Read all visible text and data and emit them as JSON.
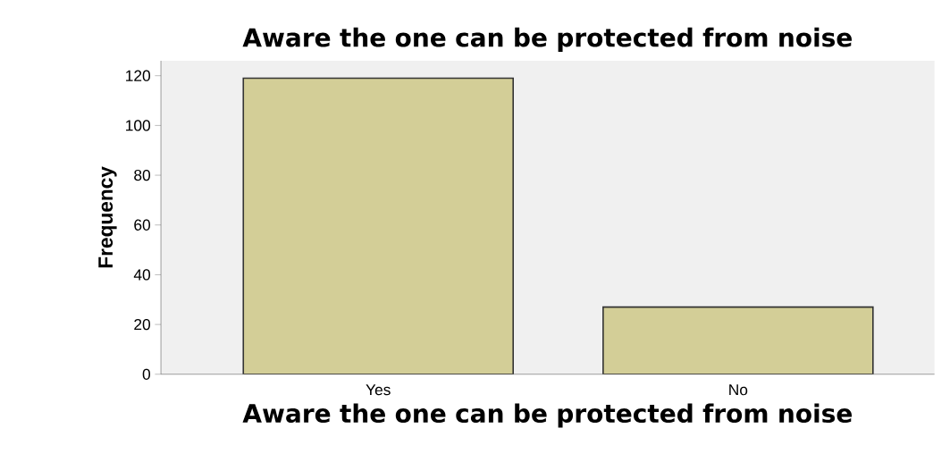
{
  "chart_data": {
    "type": "bar",
    "title": "Aware the one can be protected from noise",
    "xlabel": "Aware the one can be protected from noise",
    "ylabel": "Frequency",
    "categories": [
      "Yes",
      "No"
    ],
    "values": [
      119,
      27
    ],
    "color": "#d3ce97",
    "ylim": [
      0,
      126
    ],
    "yticks": [
      0,
      20,
      40,
      60,
      80,
      100,
      120
    ],
    "grid": false
  }
}
